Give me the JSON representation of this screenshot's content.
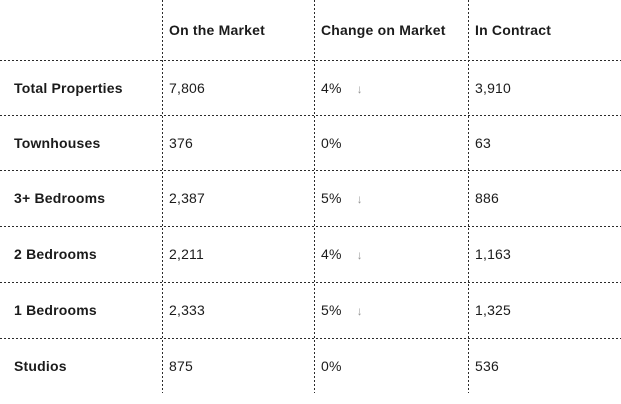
{
  "chart_data": {
    "type": "table",
    "columns": [
      "",
      "On the Market",
      "Change on Market",
      "In Contract"
    ],
    "rows": [
      [
        "Total Properties",
        7806,
        "4% down",
        3910
      ],
      [
        "Townhouses",
        376,
        "0%",
        63
      ],
      [
        "3+ Bedrooms",
        2387,
        "5% down",
        886
      ],
      [
        "2 Bedrooms",
        2211,
        "4% down",
        1163
      ],
      [
        "1 Bedrooms",
        2333,
        "5% down",
        1325
      ],
      [
        "Studios",
        875,
        "0%",
        536
      ]
    ],
    "title": "",
    "legend": [],
    "grid": "dotted-dividers"
  },
  "table": {
    "header": {
      "row_label": "",
      "on_market": "On the Market",
      "change": "Change on Market",
      "in_contract": "In Contract"
    },
    "rows": [
      {
        "label": "Total Properties",
        "on_market": "7,806",
        "change": "4%",
        "arrow": "↓",
        "in_contract": "3,910"
      },
      {
        "label": "Townhouses",
        "on_market": "376",
        "change": "0%",
        "arrow": "",
        "in_contract": "63"
      },
      {
        "label": "3+ Bedrooms",
        "on_market": "2,387",
        "change": "5%",
        "arrow": "↓",
        "in_contract": "886"
      },
      {
        "label": "2 Bedrooms",
        "on_market": "2,211",
        "change": "4%",
        "arrow": "↓",
        "in_contract": "1,163"
      },
      {
        "label": "1 Bedrooms",
        "on_market": "2,333",
        "change": "5%",
        "arrow": "↓",
        "in_contract": "1,325"
      },
      {
        "label": "Studios",
        "on_market": "875",
        "change": "0%",
        "arrow": "",
        "in_contract": "536"
      }
    ],
    "icons": {
      "down_arrow": "↓"
    },
    "colors": {
      "text": "#1b1b1b",
      "arrow_gray": "#979797",
      "divider": "#2b2b2b",
      "background": "#ffffff"
    }
  }
}
